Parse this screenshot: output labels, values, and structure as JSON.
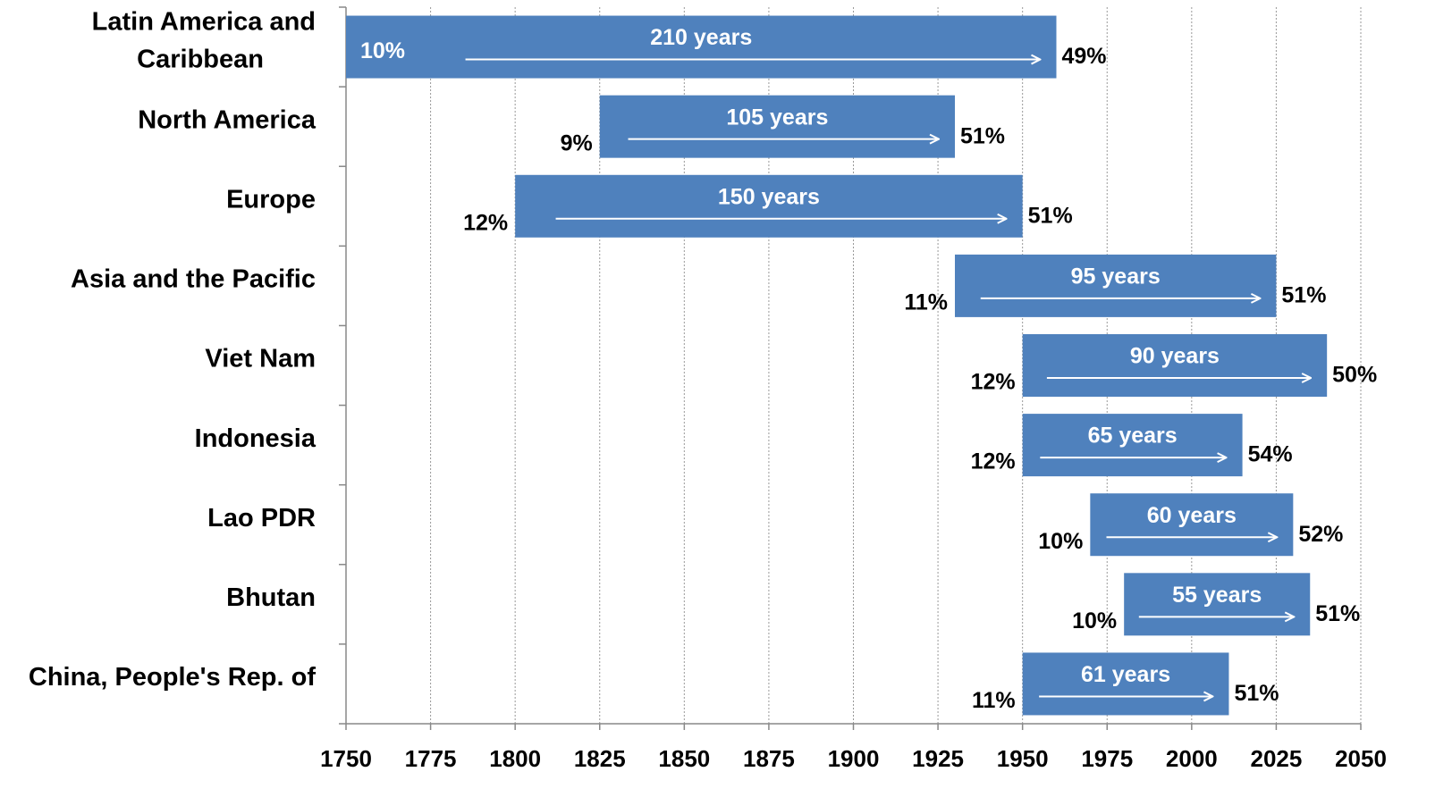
{
  "chart_data": {
    "type": "range-bar",
    "categories": [
      "Latin America and Caribbean",
      "North America",
      "Europe",
      "Asia and the Pacific",
      "Viet Nam",
      "Indonesia",
      "Lao PDR",
      "Bhutan",
      "China, People's Rep. of"
    ],
    "start": [
      1750,
      1825,
      1800,
      1930,
      1950,
      1950,
      1970,
      1980,
      1950
    ],
    "end": [
      1960,
      1930,
      1950,
      2025,
      2040,
      2015,
      2030,
      2035,
      2011
    ],
    "duration_labels": [
      "210 years",
      "105 years",
      "150 years",
      "95 years",
      "90 years",
      "65 years",
      "60 years",
      "55 years",
      "61 years"
    ],
    "start_labels": [
      "10%",
      "9%",
      "12%",
      "11%",
      "12%",
      "12%",
      "10%",
      "10%",
      "11%"
    ],
    "end_labels": [
      "49%",
      "51%",
      "51%",
      "51%",
      "50%",
      "54%",
      "52%",
      "51%",
      "51%"
    ],
    "color": "#4f81bd",
    "xlim": [
      1750,
      2050
    ],
    "xticks": [
      1750,
      1775,
      1800,
      1825,
      1850,
      1875,
      1900,
      1925,
      1950,
      1975,
      2000,
      2025,
      2050
    ],
    "grid": true
  }
}
